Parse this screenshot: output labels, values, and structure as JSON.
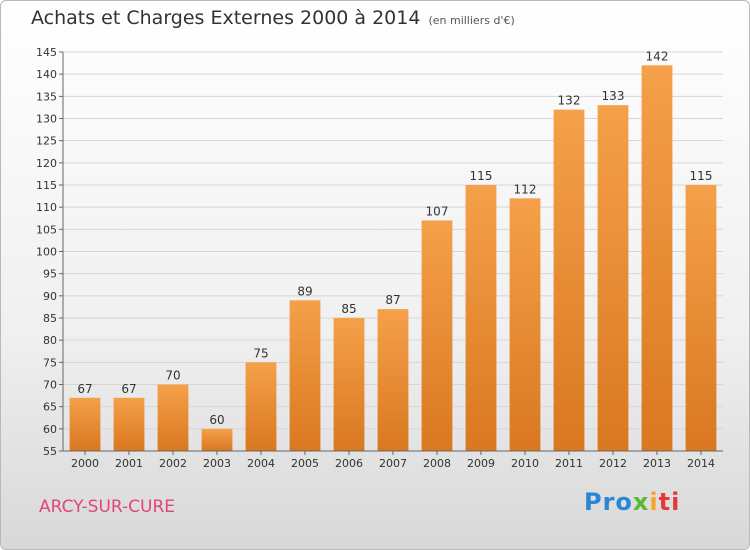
{
  "chart_data": {
    "type": "bar",
    "title": "Achats et Charges Externes 2000 à 2014",
    "subtitle": "(en milliers d'€)",
    "categories": [
      "2000",
      "2001",
      "2002",
      "2003",
      "2004",
      "2005",
      "2006",
      "2007",
      "2008",
      "2009",
      "2010",
      "2011",
      "2012",
      "2013",
      "2014"
    ],
    "values": [
      67,
      67,
      70,
      60,
      75,
      89,
      85,
      87,
      107,
      115,
      112,
      132,
      133,
      142,
      115
    ],
    "ylim": [
      55,
      145
    ],
    "yticks": [
      55,
      60,
      65,
      70,
      75,
      80,
      85,
      90,
      95,
      100,
      105,
      110,
      115,
      120,
      125,
      130,
      135,
      140,
      145
    ],
    "grid": true,
    "bar_color": "#f5a04a",
    "bar_color_dark": "#d97820"
  },
  "location_label": "ARCY-SUR-CURE",
  "brand": {
    "p1": "Pro",
    "p2": "x",
    "p3": "i",
    "p4": "ti"
  }
}
